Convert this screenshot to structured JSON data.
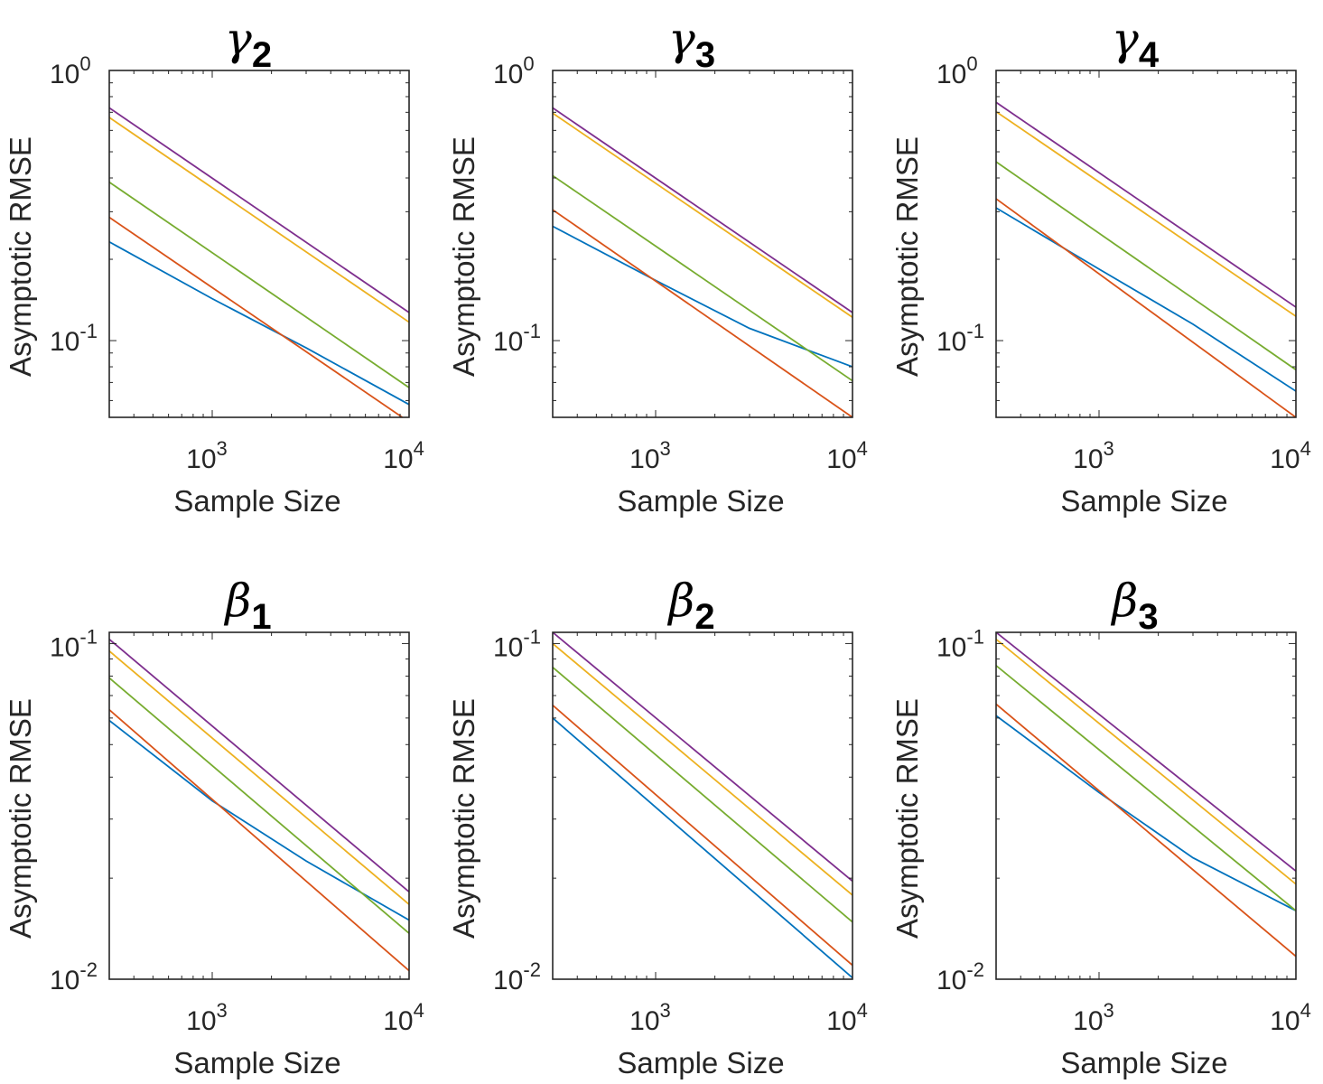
{
  "chart_data": [
    {
      "type": "line",
      "title": "γ2",
      "title_symbol": "γ",
      "title_subscript": "2",
      "xlabel": "Sample Size",
      "ylabel": "Asymptotic RMSE",
      "xscale": "log",
      "yscale": "log",
      "xlim": [
        300,
        10000
      ],
      "ylim": [
        0.052,
        1.0
      ],
      "xticks": [
        {
          "value": 1000,
          "base": "10",
          "exp": "3"
        },
        {
          "value": 10000,
          "base": "10",
          "exp": "4"
        }
      ],
      "yticks": [
        {
          "value": 0.1,
          "base": "10",
          "exp": "-1"
        },
        {
          "value": 1.0,
          "base": "10",
          "exp": "0"
        }
      ],
      "series": [
        {
          "color": "#0072BD",
          "x": [
            300,
            1000,
            3000,
            10000
          ],
          "y": [
            0.232,
            0.143,
            0.094,
            0.058
          ]
        },
        {
          "color": "#D95319",
          "x": [
            300,
            10000
          ],
          "y": [
            0.286,
            0.05
          ]
        },
        {
          "color": "#EDB120",
          "x": [
            300,
            10000
          ],
          "y": [
            0.67,
            0.117
          ]
        },
        {
          "color": "#7E2F8E",
          "x": [
            300,
            10000
          ],
          "y": [
            0.727,
            0.127
          ]
        },
        {
          "color": "#77AC30",
          "x": [
            300,
            10000
          ],
          "y": [
            0.386,
            0.067
          ]
        }
      ]
    },
    {
      "type": "line",
      "title": "γ3",
      "title_symbol": "γ",
      "title_subscript": "3",
      "xlabel": "Sample Size",
      "ylabel": "Asymptotic RMSE",
      "xscale": "log",
      "yscale": "log",
      "xlim": [
        300,
        10000
      ],
      "ylim": [
        0.052,
        1.0
      ],
      "xticks": [
        {
          "value": 1000,
          "base": "10",
          "exp": "3"
        },
        {
          "value": 10000,
          "base": "10",
          "exp": "4"
        }
      ],
      "yticks": [
        {
          "value": 0.1,
          "base": "10",
          "exp": "-1"
        },
        {
          "value": 1.0,
          "base": "10",
          "exp": "0"
        }
      ],
      "series": [
        {
          "color": "#0072BD",
          "x": [
            300,
            1000,
            3000,
            10000
          ],
          "y": [
            0.265,
            0.167,
            0.111,
            0.08
          ]
        },
        {
          "color": "#D95319",
          "x": [
            300,
            10000
          ],
          "y": [
            0.305,
            0.052
          ]
        },
        {
          "color": "#EDB120",
          "x": [
            300,
            10000
          ],
          "y": [
            0.695,
            0.122
          ]
        },
        {
          "color": "#7E2F8E",
          "x": [
            300,
            10000
          ],
          "y": [
            0.727,
            0.127
          ]
        },
        {
          "color": "#77AC30",
          "x": [
            300,
            10000
          ],
          "y": [
            0.408,
            0.071
          ]
        }
      ]
    },
    {
      "type": "line",
      "title": "γ4",
      "title_symbol": "γ",
      "title_subscript": "4",
      "xlabel": "Sample Size",
      "ylabel": "Asymptotic RMSE",
      "xscale": "log",
      "yscale": "log",
      "xlim": [
        300,
        10000
      ],
      "ylim": [
        0.052,
        1.0
      ],
      "xticks": [
        {
          "value": 1000,
          "base": "10",
          "exp": "3"
        },
        {
          "value": 10000,
          "base": "10",
          "exp": "4"
        }
      ],
      "yticks": [
        {
          "value": 0.1,
          "base": "10",
          "exp": "-1"
        },
        {
          "value": 1.0,
          "base": "10",
          "exp": "0"
        }
      ],
      "series": [
        {
          "color": "#0072BD",
          "x": [
            300,
            1000,
            3000,
            10000
          ],
          "y": [
            0.31,
            0.184,
            0.115,
            0.065
          ]
        },
        {
          "color": "#D95319",
          "x": [
            300,
            10000
          ],
          "y": [
            0.335,
            0.052
          ]
        },
        {
          "color": "#EDB120",
          "x": [
            300,
            10000
          ],
          "y": [
            0.704,
            0.123
          ]
        },
        {
          "color": "#7E2F8E",
          "x": [
            300,
            10000
          ],
          "y": [
            0.762,
            0.133
          ]
        },
        {
          "color": "#77AC30",
          "x": [
            300,
            10000
          ],
          "y": [
            0.459,
            0.078
          ]
        }
      ]
    },
    {
      "type": "line",
      "title": "β1",
      "title_symbol": "β",
      "title_subscript": "1",
      "xlabel": "Sample Size",
      "ylabel": "Asymptotic RMSE",
      "xscale": "log",
      "yscale": "log",
      "xlim": [
        300,
        10000
      ],
      "ylim": [
        0.01,
        0.108
      ],
      "xticks": [
        {
          "value": 1000,
          "base": "10",
          "exp": "3"
        },
        {
          "value": 10000,
          "base": "10",
          "exp": "4"
        }
      ],
      "yticks": [
        {
          "value": 0.01,
          "base": "10",
          "exp": "-2"
        },
        {
          "value": 0.1,
          "base": "10",
          "exp": "-1"
        }
      ],
      "series": [
        {
          "color": "#0072BD",
          "x": [
            300,
            1000,
            3000,
            10000
          ],
          "y": [
            0.059,
            0.034,
            0.0225,
            0.015
          ]
        },
        {
          "color": "#D95319",
          "x": [
            300,
            10000
          ],
          "y": [
            0.0635,
            0.0106
          ]
        },
        {
          "color": "#EDB120",
          "x": [
            300,
            10000
          ],
          "y": [
            0.095,
            0.0167
          ]
        },
        {
          "color": "#7E2F8E",
          "x": [
            300,
            10000
          ],
          "y": [
            0.103,
            0.0182
          ]
        },
        {
          "color": "#77AC30",
          "x": [
            300,
            10000
          ],
          "y": [
            0.079,
            0.0137
          ]
        }
      ]
    },
    {
      "type": "line",
      "title": "β2",
      "title_symbol": "β",
      "title_subscript": "2",
      "xlabel": "Sample Size",
      "ylabel": "Asymptotic RMSE",
      "xscale": "log",
      "yscale": "log",
      "xlim": [
        300,
        10000
      ],
      "ylim": [
        0.01,
        0.108
      ],
      "xticks": [
        {
          "value": 1000,
          "base": "10",
          "exp": "3"
        },
        {
          "value": 10000,
          "base": "10",
          "exp": "4"
        }
      ],
      "yticks": [
        {
          "value": 0.01,
          "base": "10",
          "exp": "-2"
        },
        {
          "value": 0.1,
          "base": "10",
          "exp": "-1"
        }
      ],
      "series": [
        {
          "color": "#0072BD",
          "x": [
            300,
            10000
          ],
          "y": [
            0.06,
            0.0101
          ]
        },
        {
          "color": "#D95319",
          "x": [
            300,
            10000
          ],
          "y": [
            0.0655,
            0.011
          ]
        },
        {
          "color": "#EDB120",
          "x": [
            300,
            10000
          ],
          "y": [
            0.1,
            0.0178
          ]
        },
        {
          "color": "#7E2F8E",
          "x": [
            300,
            10000
          ],
          "y": [
            0.108,
            0.0196
          ]
        },
        {
          "color": "#77AC30",
          "x": [
            300,
            10000
          ],
          "y": [
            0.085,
            0.0148
          ]
        }
      ]
    },
    {
      "type": "line",
      "title": "β3",
      "title_symbol": "β",
      "title_subscript": "3",
      "xlabel": "Sample Size",
      "ylabel": "Asymptotic RMSE",
      "xscale": "log",
      "yscale": "log",
      "xlim": [
        300,
        10000
      ],
      "ylim": [
        0.01,
        0.108
      ],
      "xticks": [
        {
          "value": 1000,
          "base": "10",
          "exp": "3"
        },
        {
          "value": 10000,
          "base": "10",
          "exp": "4"
        }
      ],
      "yticks": [
        {
          "value": 0.01,
          "base": "10",
          "exp": "-2"
        },
        {
          "value": 0.1,
          "base": "10",
          "exp": "-1"
        }
      ],
      "series": [
        {
          "color": "#0072BD",
          "x": [
            300,
            1000,
            3000,
            10000
          ],
          "y": [
            0.061,
            0.036,
            0.023,
            0.016
          ]
        },
        {
          "color": "#D95319",
          "x": [
            300,
            10000
          ],
          "y": [
            0.066,
            0.0117
          ]
        },
        {
          "color": "#EDB120",
          "x": [
            300,
            10000
          ],
          "y": [
            0.103,
            0.0192
          ]
        },
        {
          "color": "#7E2F8E",
          "x": [
            300,
            10000
          ],
          "y": [
            0.108,
            0.021
          ]
        },
        {
          "color": "#77AC30",
          "x": [
            300,
            10000
          ],
          "y": [
            0.086,
            0.016
          ]
        }
      ]
    }
  ]
}
